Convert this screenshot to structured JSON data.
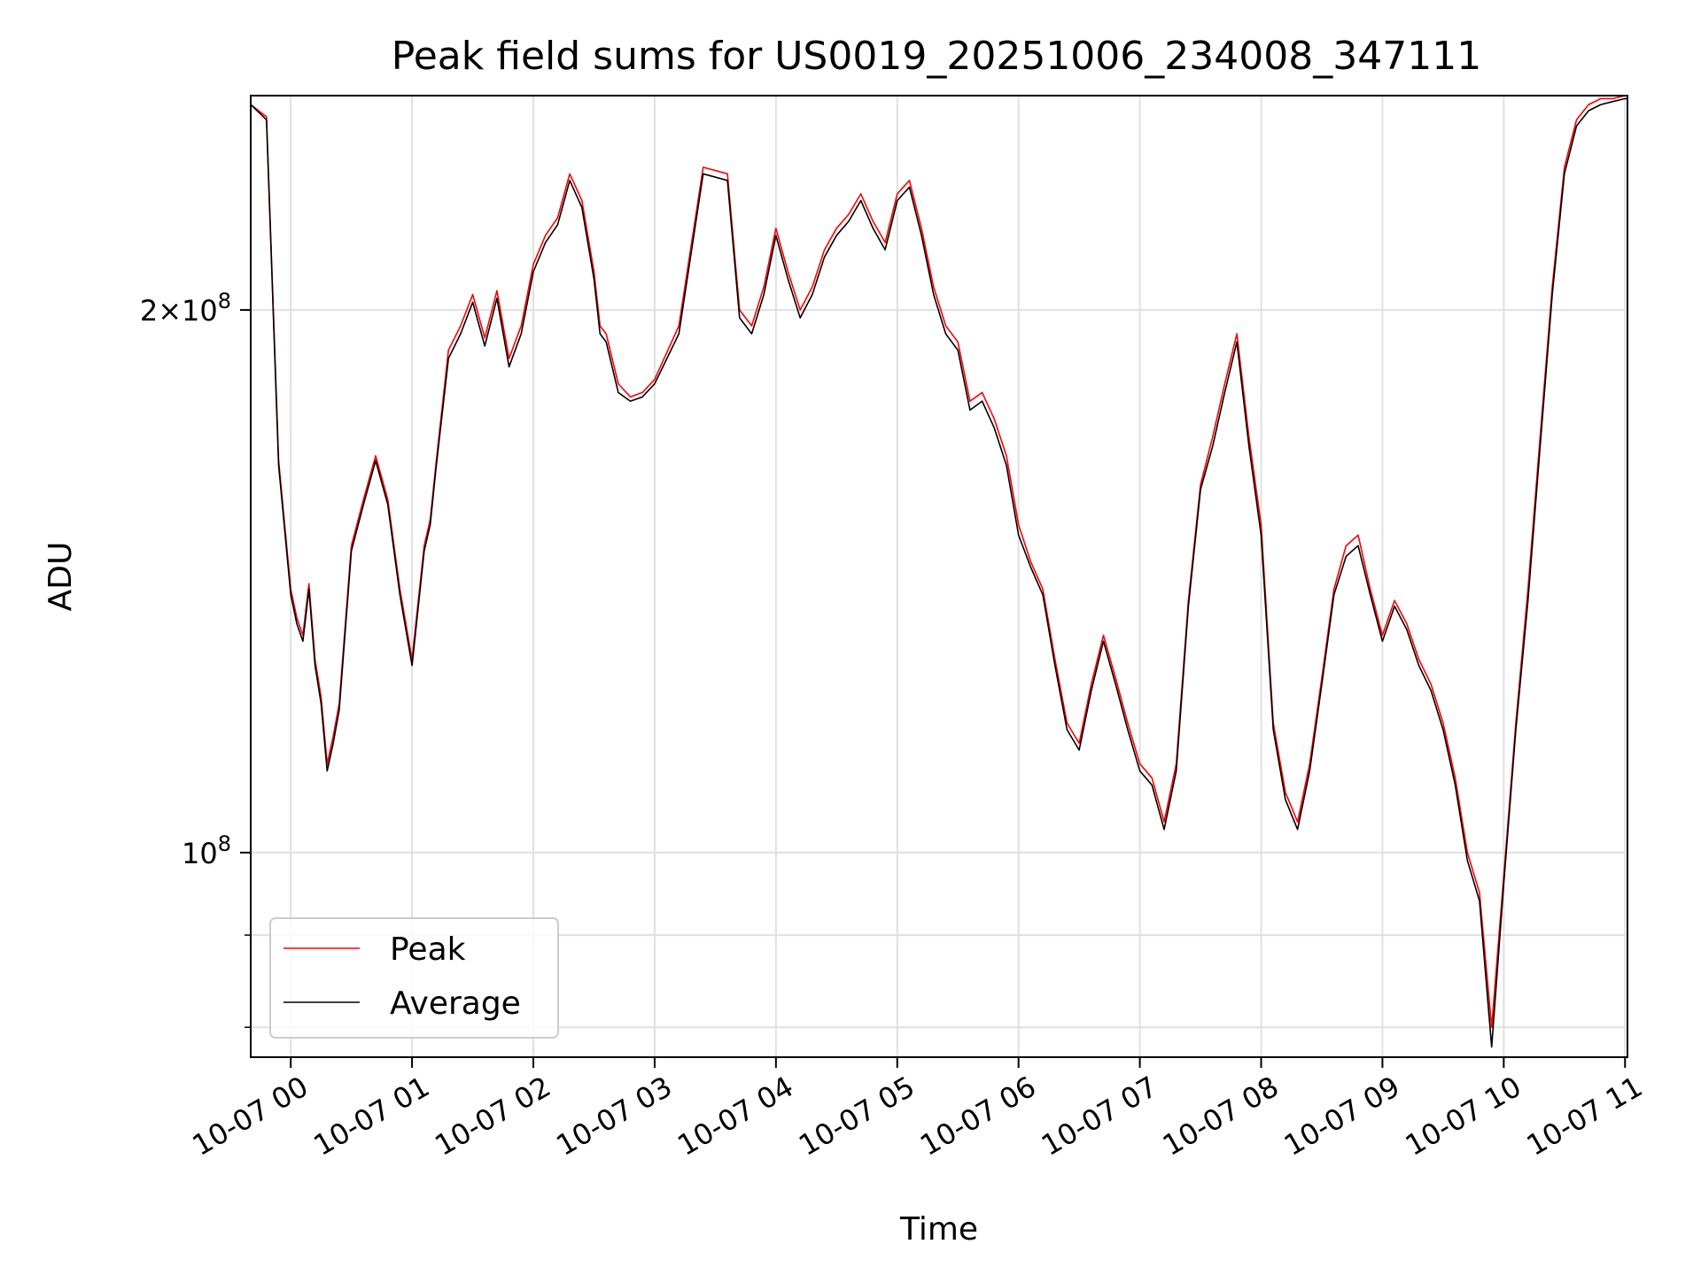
{
  "chart_data": {
    "type": "line",
    "title": "Peak field sums for US0019_20251006_234008_347111",
    "xlabel": "Time",
    "ylabel": "ADU",
    "yscale": "log",
    "grid": true,
    "legend_position": "lower-left",
    "xlim_hours": [
      -0.33,
      11.02
    ],
    "ylim": [
      77000000,
      263000000
    ],
    "x_ticks": [
      {
        "label": "10-07 00",
        "hour": 0
      },
      {
        "label": "10-07 01",
        "hour": 1
      },
      {
        "label": "10-07 02",
        "hour": 2
      },
      {
        "label": "10-07 03",
        "hour": 3
      },
      {
        "label": "10-07 04",
        "hour": 4
      },
      {
        "label": "10-07 05",
        "hour": 5
      },
      {
        "label": "10-07 06",
        "hour": 6
      },
      {
        "label": "10-07 07",
        "hour": 7
      },
      {
        "label": "10-07 08",
        "hour": 8
      },
      {
        "label": "10-07 09",
        "hour": 9
      },
      {
        "label": "10-07 10",
        "hour": 10
      },
      {
        "label": "10-07 11",
        "hour": 11
      }
    ],
    "y_ticks": [
      {
        "base": "10",
        "exp": "8",
        "value": 100000000
      },
      {
        "base": "2×10",
        "exp": "8",
        "value": 200000000
      }
    ],
    "y_minor_ticks": [
      80000000,
      90000000
    ],
    "x_hours": [
      -0.33,
      -0.2,
      -0.1,
      0,
      0.05,
      0.1,
      0.15,
      0.2,
      0.25,
      0.3,
      0.35,
      0.4,
      0.5,
      0.6,
      0.7,
      0.8,
      0.9,
      1.0,
      1.1,
      1.15,
      1.2,
      1.3,
      1.4,
      1.5,
      1.6,
      1.7,
      1.8,
      1.9,
      2.0,
      2.1,
      2.2,
      2.3,
      2.4,
      2.5,
      2.55,
      2.6,
      2.7,
      2.8,
      2.9,
      3.0,
      3.2,
      3.4,
      3.6,
      3.7,
      3.8,
      3.9,
      4.0,
      4.1,
      4.2,
      4.3,
      4.4,
      4.5,
      4.6,
      4.7,
      4.8,
      4.9,
      5.0,
      5.1,
      5.2,
      5.3,
      5.4,
      5.5,
      5.6,
      5.7,
      5.8,
      5.9,
      6.0,
      6.1,
      6.2,
      6.3,
      6.4,
      6.5,
      6.6,
      6.7,
      6.8,
      6.9,
      7.0,
      7.1,
      7.2,
      7.3,
      7.4,
      7.5,
      7.6,
      7.7,
      7.8,
      7.9,
      8.0,
      8.1,
      8.2,
      8.3,
      8.4,
      8.5,
      8.6,
      8.7,
      8.8,
      8.9,
      9.0,
      9.1,
      9.2,
      9.3,
      9.4,
      9.5,
      9.6,
      9.7,
      9.8,
      9.9,
      10.0,
      10.1,
      10.2,
      10.3,
      10.4,
      10.5,
      10.6,
      10.7,
      10.8,
      10.9,
      11.0,
      11.02
    ],
    "series": [
      {
        "name": "Peak",
        "color": "#ff0000",
        "values": [
          260000000,
          256000000,
          165000000,
          140000000,
          135000000,
          132000000,
          141000000,
          128000000,
          122000000,
          112000000,
          116000000,
          121000000,
          148000000,
          157000000,
          166000000,
          157000000,
          140000000,
          128000000,
          148000000,
          153000000,
          165000000,
          190000000,
          196000000,
          204000000,
          193000000,
          205000000,
          188000000,
          196000000,
          212000000,
          220000000,
          225000000,
          238000000,
          230000000,
          210000000,
          196000000,
          194000000,
          182000000,
          179000000,
          180000000,
          183000000,
          196000000,
          240000000,
          238000000,
          200000000,
          196000000,
          206000000,
          222000000,
          210000000,
          200000000,
          206000000,
          216000000,
          222000000,
          226000000,
          232000000,
          224000000,
          218000000,
          232000000,
          236000000,
          222000000,
          206000000,
          196000000,
          192000000,
          178000000,
          180000000,
          174000000,
          166000000,
          152000000,
          145000000,
          140000000,
          128000000,
          118000000,
          115000000,
          124000000,
          132000000,
          125000000,
          118000000,
          112000000,
          110000000,
          104000000,
          112000000,
          138000000,
          160000000,
          170000000,
          182000000,
          194000000,
          170000000,
          152000000,
          118000000,
          108000000,
          104000000,
          112000000,
          125000000,
          140000000,
          148000000,
          150000000,
          140000000,
          132000000,
          138000000,
          134000000,
          128000000,
          124000000,
          118000000,
          110000000,
          100000000,
          95000000,
          80000000,
          97000000,
          118000000,
          140000000,
          170000000,
          206000000,
          240000000,
          255000000,
          260000000,
          262000000,
          262000000,
          263000000,
          263000000
        ]
      },
      {
        "name": "Average",
        "color": "#000000",
        "values": [
          260000000,
          255000000,
          164000000,
          139000000,
          134000000,
          131000000,
          140000000,
          127000000,
          121000000,
          111000000,
          115000000,
          120000000,
          147000000,
          156000000,
          165000000,
          156000000,
          139000000,
          127000000,
          147000000,
          152000000,
          164000000,
          188000000,
          194000000,
          202000000,
          191000000,
          203000000,
          186000000,
          194000000,
          210000000,
          218000000,
          223000000,
          236000000,
          228000000,
          208000000,
          194000000,
          192000000,
          180000000,
          178000000,
          179000000,
          182000000,
          194000000,
          238000000,
          236000000,
          198000000,
          194000000,
          204000000,
          220000000,
          208000000,
          198000000,
          204000000,
          214000000,
          220000000,
          224000000,
          230000000,
          222000000,
          216000000,
          230000000,
          234000000,
          220000000,
          204000000,
          194000000,
          190000000,
          176000000,
          178000000,
          172000000,
          164000000,
          150000000,
          144000000,
          139000000,
          127000000,
          117000000,
          114000000,
          123000000,
          131000000,
          124000000,
          117000000,
          111000000,
          109000000,
          103000000,
          111000000,
          137000000,
          159000000,
          168000000,
          180000000,
          192000000,
          168000000,
          150000000,
          117000000,
          107000000,
          103000000,
          111000000,
          124000000,
          139000000,
          146000000,
          148000000,
          139000000,
          131000000,
          137000000,
          133000000,
          127000000,
          123000000,
          117000000,
          109000000,
          99000000,
          94000000,
          78000000,
          96000000,
          117000000,
          138000000,
          168000000,
          204000000,
          238000000,
          253000000,
          258000000,
          260000000,
          261000000,
          262000000,
          262000000
        ]
      }
    ]
  }
}
